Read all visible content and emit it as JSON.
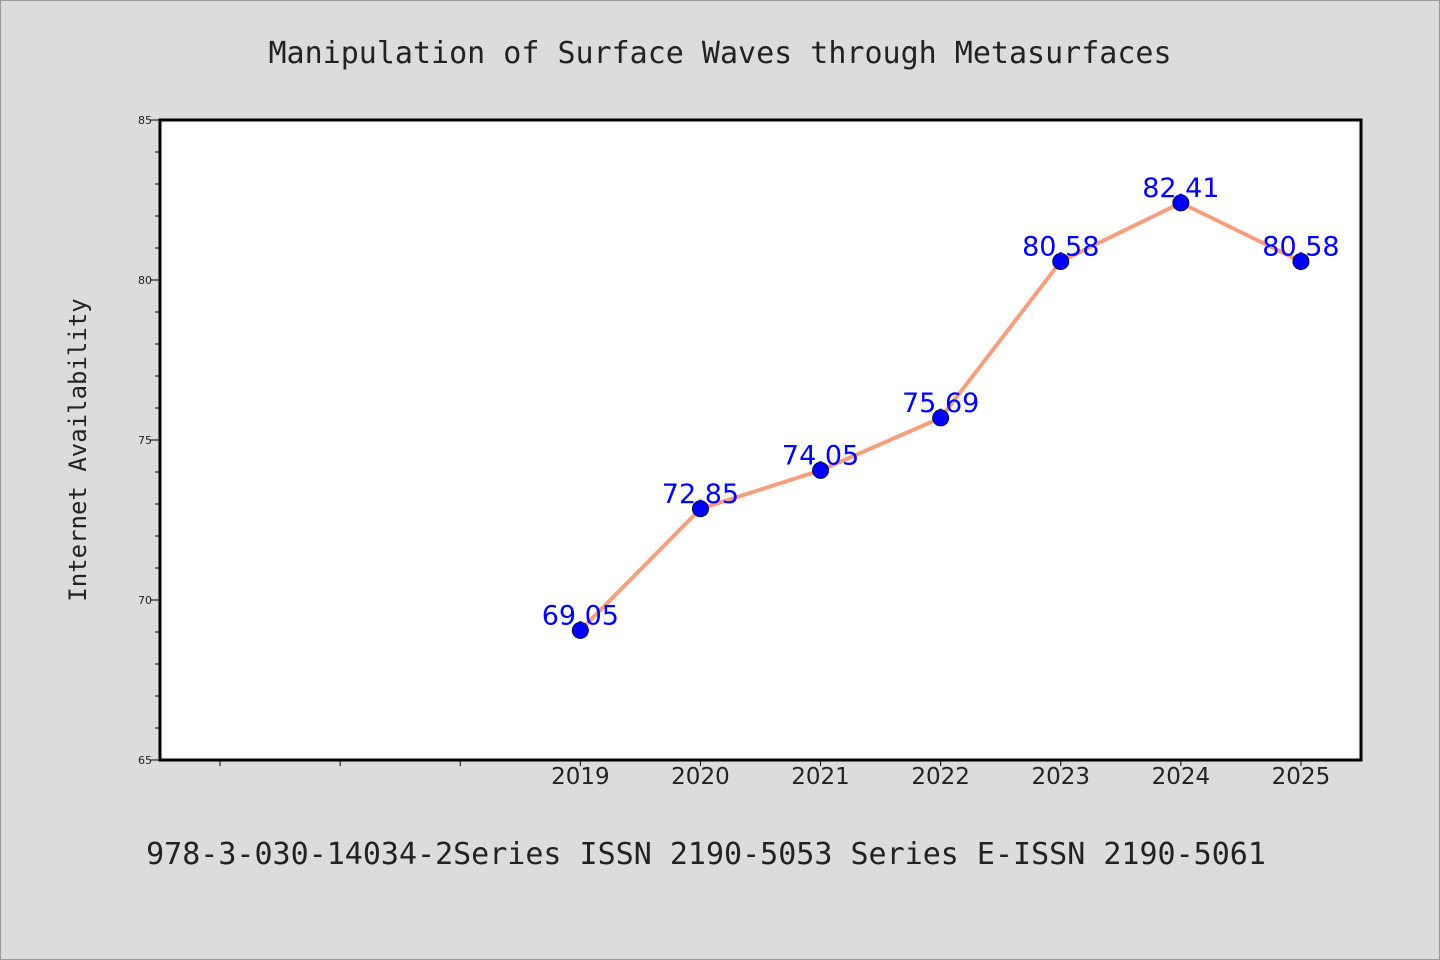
{
  "chart_data": {
    "type": "line",
    "title": "Manipulation of Surface Waves through Metasurfaces",
    "xlabel": "",
    "ylabel": "Internet Availability",
    "footer": "978-3-030-14034-2Series ISSN 2190-5053 Series E-ISSN 2190-5061",
    "x": [
      "2019",
      "2020",
      "2021",
      "2022",
      "2023",
      "2024",
      "2025"
    ],
    "series": [
      {
        "values": [
          69.05,
          72.85,
          74.05,
          75.69,
          80.58,
          82.41,
          80.58
        ]
      }
    ],
    "data_labels": [
      "69.05",
      "72.85",
      "74.05",
      "75.69",
      "80.58",
      "82.41",
      "80.58"
    ],
    "xlim": [
      2015.5,
      2025.5
    ],
    "ylim": [
      65,
      85
    ],
    "y_ticks": [
      "65",
      "70",
      "75",
      "80",
      "85"
    ],
    "grid": false,
    "legend": "none",
    "colors": {
      "background": "#dcdcdc",
      "plot_background": "#ffffff",
      "line": "#f4a07e",
      "marker": "#0000ff",
      "label": "#0000ff",
      "text": "#222222"
    }
  }
}
